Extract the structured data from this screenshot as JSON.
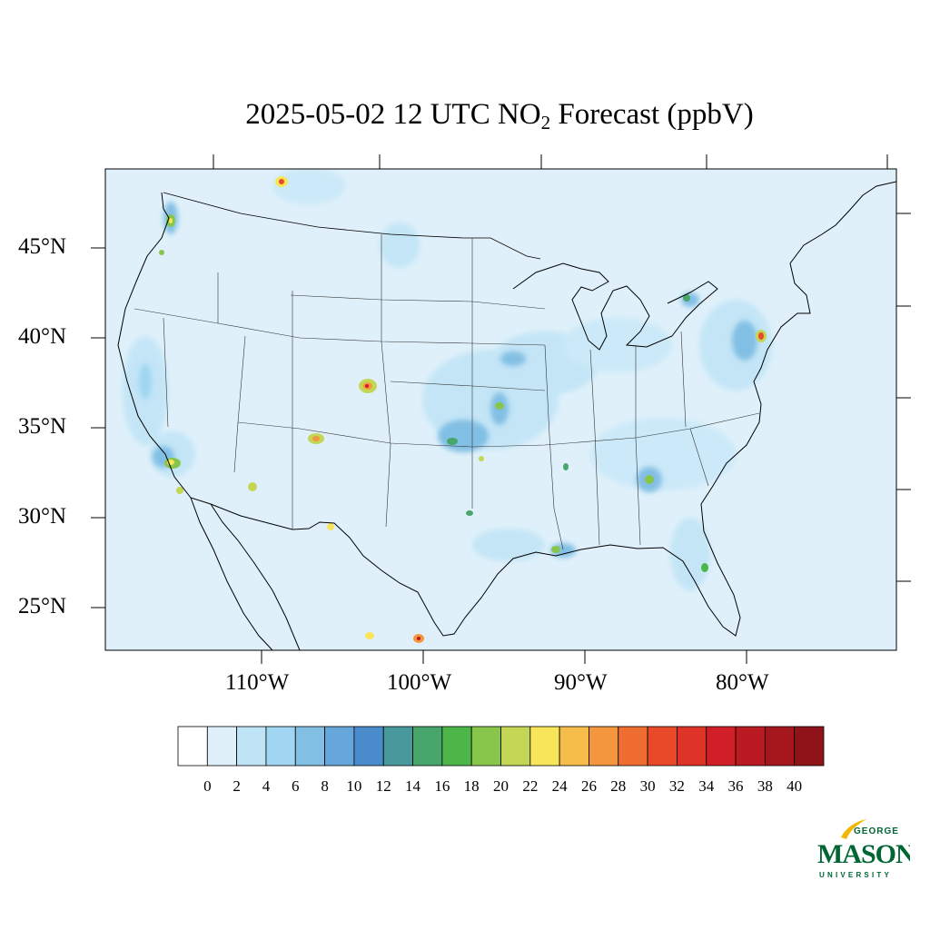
{
  "title": {
    "prefix": "2025-05-02 12 UTC NO",
    "subscript": "2",
    "suffix": " Forecast (ppbV)"
  },
  "map": {
    "region": "Continental United States",
    "background_color": "#dff0fa",
    "latitude_labels": [
      "45°N",
      "40°N",
      "35°N",
      "30°N",
      "25°N"
    ],
    "longitude_labels": [
      "110°W",
      "100°W",
      "90°W",
      "80°W"
    ]
  },
  "colorbar": {
    "tick_labels": [
      "0",
      "2",
      "4",
      "6",
      "8",
      "10",
      "12",
      "14",
      "16",
      "18",
      "20",
      "22",
      "24",
      "26",
      "28",
      "30",
      "32",
      "34",
      "36",
      "38",
      "40"
    ],
    "colors": [
      "#ffffff",
      "#dff0fa",
      "#bfe4f6",
      "#a0d6f2",
      "#82bfe4",
      "#67a6da",
      "#4a8bcc",
      "#48999b",
      "#47a66b",
      "#4cb649",
      "#88c64b",
      "#c3d656",
      "#f8e55a",
      "#f6bd4a",
      "#f4963e",
      "#ef6d30",
      "#e84a29",
      "#de3327",
      "#d01f26",
      "#ba1a22",
      "#a5171c",
      "#8f141a"
    ]
  },
  "logo": {
    "line1": "GEORGE",
    "line2": "MASON",
    "line3": "UNIVERSITY",
    "color": "#006633",
    "accent": "#f2b705"
  }
}
